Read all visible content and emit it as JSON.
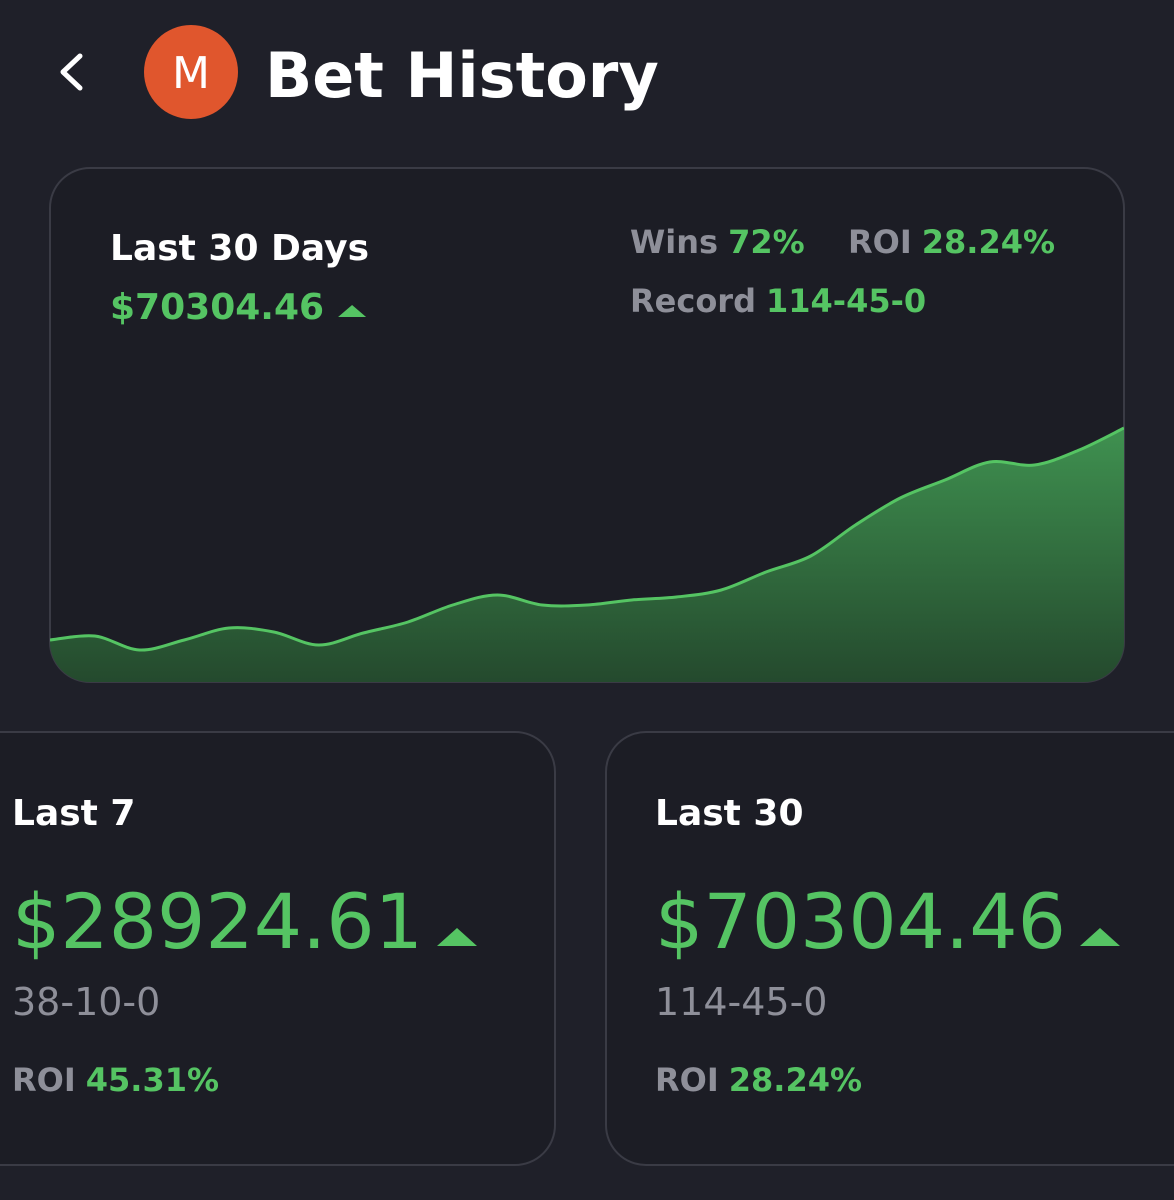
{
  "header": {
    "avatar_letter": "M",
    "title": "Bet History"
  },
  "summary": {
    "title": "Last 30 Days",
    "amount": "$70304.46",
    "wins_label": "Wins",
    "wins": "72%",
    "roi_label": "ROI",
    "roi": "28.24%",
    "record_label": "Record",
    "record": "114-45-0"
  },
  "chart_data": {
    "type": "area",
    "color": "#55c463",
    "ylim": [
      0,
      260
    ],
    "values": [
      40,
      44,
      30,
      40,
      52,
      48,
      35,
      47,
      58,
      75,
      85,
      75,
      75,
      80,
      83,
      90,
      108,
      124,
      155,
      182,
      200,
      218,
      215,
      230,
      252
    ]
  },
  "cards": [
    {
      "title": "Last 7",
      "amount": "$28924.61",
      "record": "38-10-0",
      "roi_label": "ROI",
      "roi": "45.31%"
    },
    {
      "title": "Last 30",
      "amount": "$70304.46",
      "record": "114-45-0",
      "roi_label": "ROI",
      "roi": "28.24%"
    }
  ]
}
